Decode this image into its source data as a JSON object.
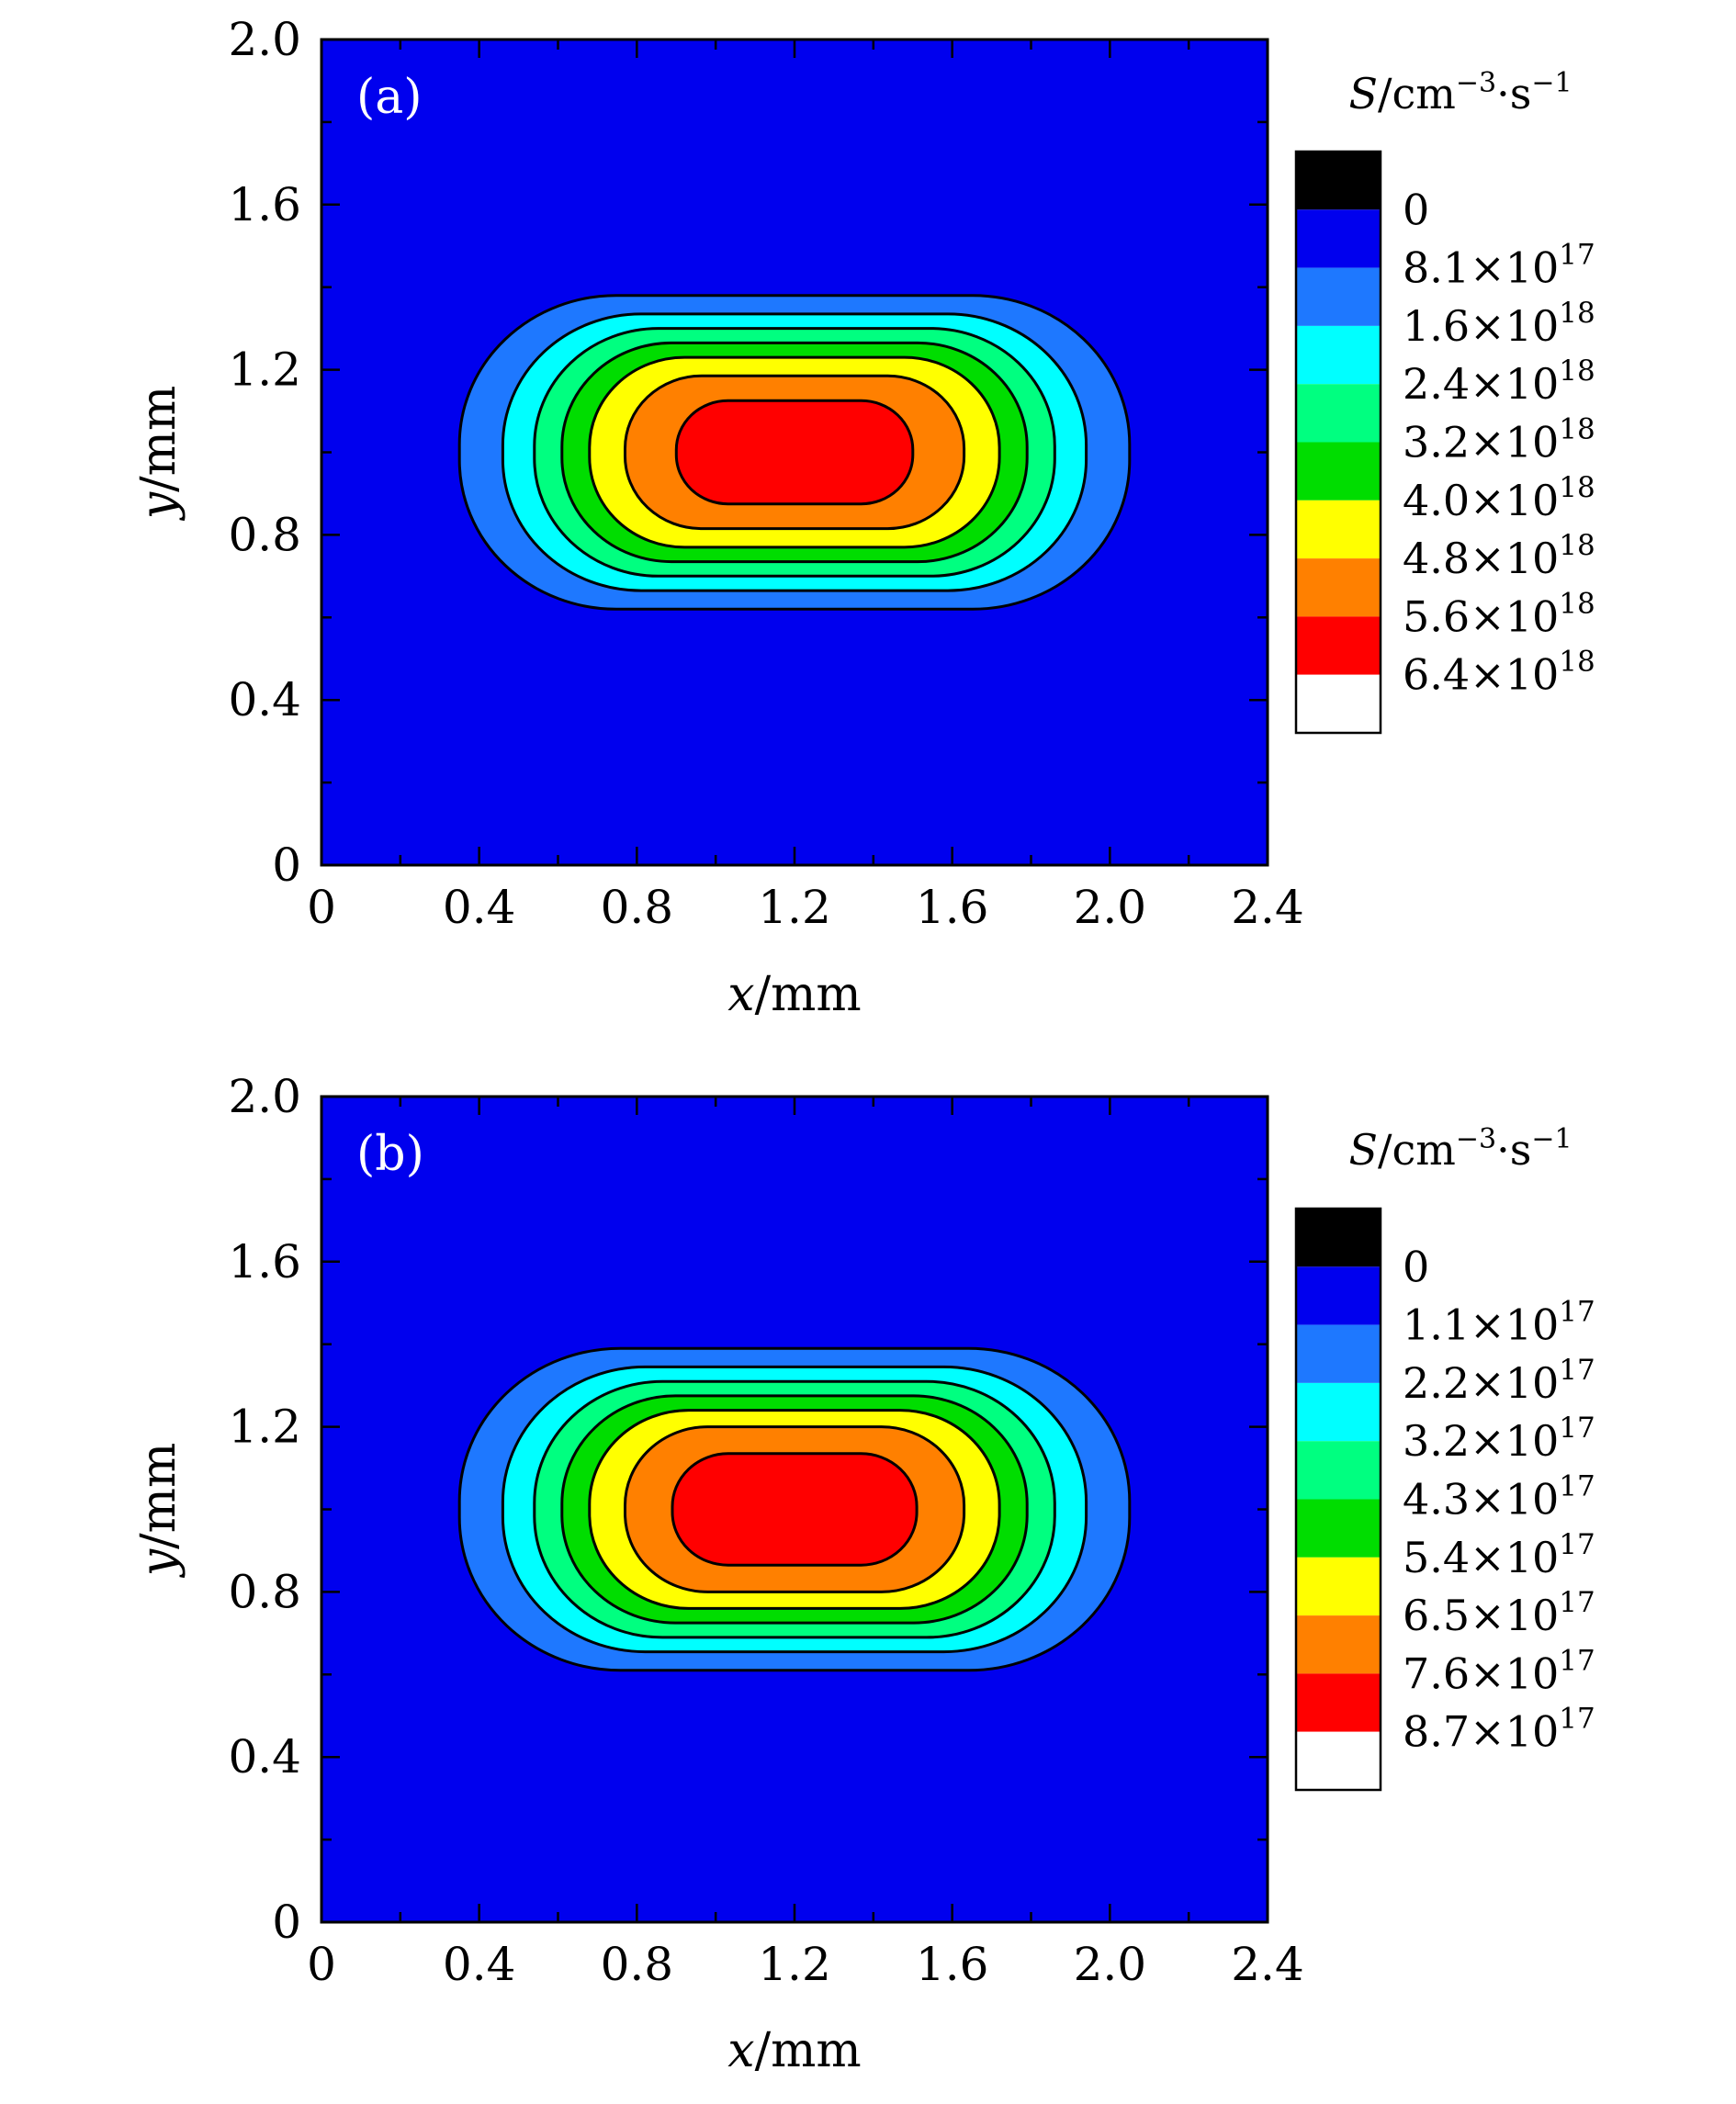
{
  "chart_data": [
    {
      "type": "contour",
      "panel_label": "(a)",
      "xlabel": {
        "var": "x",
        "unit": "/mm"
      },
      "ylabel": {
        "var": "y",
        "unit": "/mm"
      },
      "xlim": [
        0,
        2.4
      ],
      "ylim": [
        0,
        2.0
      ],
      "x_ticks": [
        "0",
        "0.4",
        "0.8",
        "1.2",
        "1.6",
        "2.0",
        "2.4"
      ],
      "y_ticks": [
        "0",
        "0.4",
        "0.8",
        "1.2",
        "1.6",
        "2.0"
      ],
      "colorbar_title": {
        "var": "S",
        "unit": "/cm",
        "exp1": "−3",
        "mid": "·s",
        "exp2": "−1"
      },
      "levels": [
        {
          "mantissa": "0",
          "exp": ""
        },
        {
          "mantissa": "8.1×10",
          "exp": "17"
        },
        {
          "mantissa": "1.6×10",
          "exp": "18"
        },
        {
          "mantissa": "2.4×10",
          "exp": "18"
        },
        {
          "mantissa": "3.2×10",
          "exp": "18"
        },
        {
          "mantissa": "4.0×10",
          "exp": "18"
        },
        {
          "mantissa": "4.8×10",
          "exp": "18"
        },
        {
          "mantissa": "5.6×10",
          "exp": "18"
        },
        {
          "mantissa": "6.4×10",
          "exp": "18"
        }
      ],
      "center": [
        1.2,
        1.0
      ],
      "contours": [
        {
          "half_width": 0.85,
          "half_height": 0.38
        },
        {
          "half_width": 0.74,
          "half_height": 0.335
        },
        {
          "half_width": 0.66,
          "half_height": 0.3
        },
        {
          "half_width": 0.59,
          "half_height": 0.265
        },
        {
          "half_width": 0.52,
          "half_height": 0.23
        },
        {
          "half_width": 0.43,
          "half_height": 0.185
        },
        {
          "half_width": 0.3,
          "half_height": 0.125
        }
      ]
    },
    {
      "type": "contour",
      "panel_label": "(b)",
      "xlabel": {
        "var": "x",
        "unit": "/mm"
      },
      "ylabel": {
        "var": "y",
        "unit": "/mm"
      },
      "xlim": [
        0,
        2.4
      ],
      "ylim": [
        0,
        2.0
      ],
      "x_ticks": [
        "0",
        "0.4",
        "0.8",
        "1.2",
        "1.6",
        "2.0",
        "2.4"
      ],
      "y_ticks": [
        "0",
        "0.4",
        "0.8",
        "1.2",
        "1.6",
        "2.0"
      ],
      "colorbar_title": {
        "var": "S",
        "unit": "/cm",
        "exp1": "−3",
        "mid": "·s",
        "exp2": "−1"
      },
      "levels": [
        {
          "mantissa": "0",
          "exp": ""
        },
        {
          "mantissa": "1.1×10",
          "exp": "17"
        },
        {
          "mantissa": "2.2×10",
          "exp": "17"
        },
        {
          "mantissa": "3.2×10",
          "exp": "17"
        },
        {
          "mantissa": "4.3×10",
          "exp": "17"
        },
        {
          "mantissa": "5.4×10",
          "exp": "17"
        },
        {
          "mantissa": "6.5×10",
          "exp": "17"
        },
        {
          "mantissa": "7.6×10",
          "exp": "17"
        },
        {
          "mantissa": "8.7×10",
          "exp": "17"
        }
      ],
      "center": [
        1.2,
        1.0
      ],
      "contours": [
        {
          "half_width": 0.85,
          "half_height": 0.39
        },
        {
          "half_width": 0.74,
          "half_height": 0.345
        },
        {
          "half_width": 0.66,
          "half_height": 0.31
        },
        {
          "half_width": 0.59,
          "half_height": 0.275
        },
        {
          "half_width": 0.52,
          "half_height": 0.24
        },
        {
          "half_width": 0.43,
          "half_height": 0.2
        },
        {
          "half_width": 0.31,
          "half_height": 0.135
        }
      ]
    }
  ],
  "colors": {
    "background_blue": "#0000ee",
    "fills": [
      "#1e78ff",
      "#00ffff",
      "#00ff80",
      "#00dd00",
      "#ffff00",
      "#ff8000",
      "#ff0000"
    ],
    "colorbar": [
      "#000000",
      "#0000ee",
      "#1e78ff",
      "#00ffff",
      "#00ff80",
      "#00dd00",
      "#ffff00",
      "#ff8000",
      "#ff0000",
      "#ffffff"
    ]
  }
}
